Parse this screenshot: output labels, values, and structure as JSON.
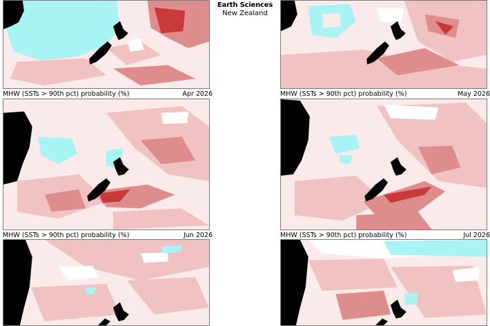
{
  "brand": {
    "line1": "Earth Sciences",
    "line2": "New Zealand"
  },
  "map_title": "MHW (SSTs > 90th pct) probability (%)",
  "panels": [
    {
      "month": "Apr 2026"
    },
    {
      "month": "May 2026"
    },
    {
      "month": "Jun 2026"
    },
    {
      "month": "Jul 2026"
    },
    {
      "month": ""
    },
    {
      "month": ""
    }
  ],
  "colors": {
    "background_low": "#fbeaea",
    "cool_anomaly": "#a8f3f3",
    "pale": "#ffffff",
    "light_red": "#f0c2c2",
    "medium_red": "#df8c8c",
    "dark_red": "#c83a3a",
    "land": "#000000"
  }
}
